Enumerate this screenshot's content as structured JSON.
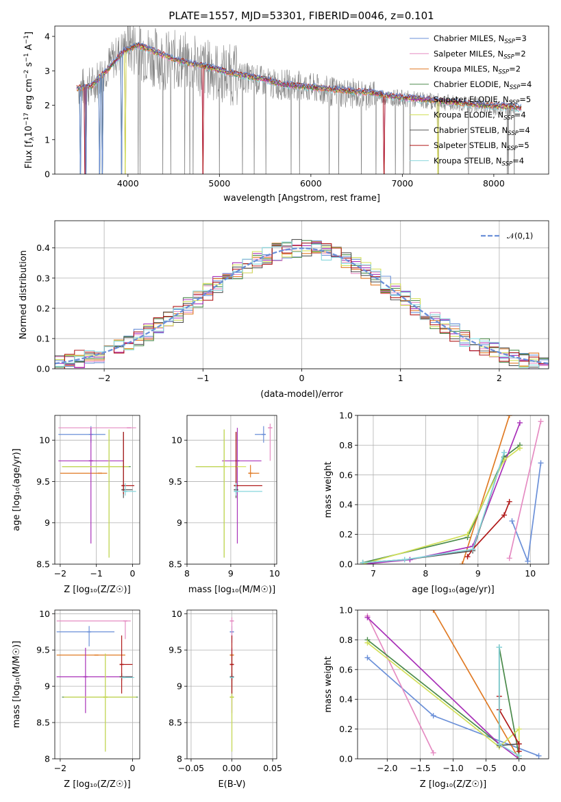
{
  "title": "PLATE=1557, MJD=53301, FIBERID=0046, z=0.101",
  "colors": [
    "#6a8fd8",
    "#e58bc2",
    "#e07a24",
    "#4a8a4a",
    "#a830b8",
    "#d2e05a",
    "#555555",
    "#b01818",
    "#86d6dc"
  ],
  "legend": [
    "Chabrier MILES, N_SSP=3",
    "Salpeter MILES, N_SSP=2",
    "Kroupa MILES, N_SSP=2",
    "Chabrier ELODIE, N_SSP=4",
    "Salpeter ELODIE, N_SSP=5",
    "Kroupa ELODIE, N_SSP=4",
    "Chabrier STELIB, N_SSP=4",
    "Salpeter STELIB, N_SSP=5",
    "Kroupa STELIB, N_SSP=4"
  ],
  "chart_data": [
    {
      "id": "spectrum",
      "type": "line",
      "xlabel": "wavelength [Angstrom, rest frame]",
      "ylabel": "Flux [f_λ 10^-17 erg cm^-2 s^-1 A^-1]",
      "xlim": [
        3200,
        8600
      ],
      "ylim": [
        0,
        4.3
      ],
      "xticks": [
        4000,
        5000,
        6000,
        7000,
        8000
      ],
      "yticks": [
        0,
        1,
        2,
        3,
        4
      ],
      "grid": false,
      "legend_position": "top-right",
      "data_series": {
        "name": "data",
        "color": "#808080",
        "x": [
          3460,
          3600,
          3800,
          4000,
          4200,
          4400,
          4600,
          4800,
          5000,
          5200,
          5400,
          5600,
          5800,
          6000,
          6200,
          6400,
          6600,
          6800,
          7000,
          7200,
          7400,
          7600,
          7800,
          8000,
          8200
        ],
        "y": [
          2.5,
          2.55,
          3.2,
          3.8,
          3.5,
          3.3,
          3.3,
          3.1,
          2.95,
          2.85,
          2.75,
          2.6,
          2.6,
          2.5,
          2.4,
          2.35,
          2.3,
          2.25,
          2.2,
          2.15,
          2.1,
          2.05,
          2.0,
          1.95,
          1.9
        ]
      },
      "model_x": [
        3440,
        3600,
        3800,
        3950,
        4100,
        4300,
        4500,
        4700,
        4900,
        5100,
        5300,
        5500,
        5700,
        5900,
        6100,
        6300,
        6500,
        6700,
        6900,
        7100,
        7300,
        7500,
        7700,
        7900,
        8100,
        8300
      ],
      "model_y": [
        2.5,
        2.55,
        3.1,
        3.55,
        3.75,
        3.55,
        3.35,
        3.2,
        3.1,
        2.95,
        2.85,
        2.75,
        2.6,
        2.55,
        2.5,
        2.45,
        2.4,
        2.35,
        2.25,
        2.2,
        2.15,
        2.1,
        2.05,
        2.0,
        1.97,
        1.92
      ]
    },
    {
      "id": "residual_hist",
      "type": "line",
      "xlabel": "(data-model)/error",
      "ylabel": "Normed distribution",
      "xlim": [
        -2.5,
        2.5
      ],
      "ylim": [
        0,
        0.49
      ],
      "xticks": [
        -2,
        -1,
        0,
        1,
        2
      ],
      "yticks": [
        0.0,
        0.1,
        0.2,
        0.3,
        0.4
      ],
      "grid": true,
      "legend": "𝒩(0,1)",
      "legend_position": "top-right",
      "bin_width": 0.1,
      "reference_mean": 0,
      "reference_sigma": 1
    },
    {
      "id": "age_vs_Z",
      "type": "scatter",
      "xlabel": "Z [log10(Z/Z☉)]",
      "ylabel": "age [log10(age/yr)]",
      "xlim": [
        -2.15,
        0.2
      ],
      "ylim": [
        8.5,
        10.3
      ],
      "xticks": [
        -2,
        -1,
        0
      ],
      "yticks": [
        8.5,
        9.0,
        9.5,
        10.0
      ],
      "grid": true,
      "points": [
        {
          "x": -1.15,
          "y": 10.07,
          "xerr": [
            0.9,
            0.4
          ],
          "yerr": [
            0.1,
            0.1
          ],
          "color": 0
        },
        {
          "x": -0.1,
          "y": 10.15,
          "xerr": [
            1.95,
            0.2
          ],
          "yerr": [
            0.0,
            0.0
          ],
          "color": 1
        },
        {
          "x": -0.9,
          "y": 9.6,
          "xerr": [
            1.1,
            0.2
          ],
          "yerr": [
            0.0,
            0.0
          ],
          "color": 2
        },
        {
          "x": -0.65,
          "y": 9.68,
          "xerr": [
            1.3,
            0.6
          ],
          "yerr": [
            1.1,
            0.45
          ],
          "color": 3
        },
        {
          "x": -1.15,
          "y": 9.75,
          "xerr": [
            0.9,
            0.9
          ],
          "yerr": [
            1.0,
            0.4
          ],
          "color": 4
        },
        {
          "x": -0.65,
          "y": 9.68,
          "xerr": [
            1.3,
            0.55
          ],
          "yerr": [
            1.1,
            0.45
          ],
          "color": 5
        },
        {
          "x": -0.25,
          "y": 9.4,
          "xerr": [
            0.05,
            0.25
          ],
          "yerr": [
            0.1,
            0.7
          ],
          "color": 6
        },
        {
          "x": -0.25,
          "y": 9.45,
          "xerr": [
            0.05,
            0.3
          ],
          "yerr": [
            0.1,
            0.65
          ],
          "color": 7
        },
        {
          "x": -0.2,
          "y": 9.38,
          "xerr": [
            0.05,
            0.3
          ],
          "yerr": [
            0.05,
            0.1
          ],
          "color": 8
        }
      ]
    },
    {
      "id": "age_vs_mass",
      "type": "scatter",
      "xlabel": "mass [log10(M/M☉)]",
      "ylabel": "",
      "xlim": [
        8.0,
        10.05
      ],
      "ylim": [
        8.5,
        10.3
      ],
      "xticks": [
        8,
        9,
        10
      ],
      "yticks": [
        8.5,
        9.0,
        9.5,
        10.0
      ],
      "grid": true,
      "points": [
        {
          "x": 9.75,
          "y": 10.07,
          "xerr": [
            0.2,
            0.05
          ],
          "yerr": [
            0.1,
            0.1
          ],
          "color": 0
        },
        {
          "x": 9.9,
          "y": 10.15,
          "xerr": [
            0.05,
            0.05
          ],
          "yerr": [
            0.4,
            0.05
          ],
          "color": 1
        },
        {
          "x": 9.45,
          "y": 9.6,
          "xerr": [
            0.05,
            0.2
          ],
          "yerr": [
            0.05,
            0.1
          ],
          "color": 2
        },
        {
          "x": 8.85,
          "y": 9.68,
          "xerr": [
            0.65,
            0.05
          ],
          "yerr": [
            1.1,
            0.45
          ],
          "color": 3
        },
        {
          "x": 9.15,
          "y": 9.75,
          "xerr": [
            0.35,
            0.55
          ],
          "yerr": [
            1.0,
            0.4
          ],
          "color": 4
        },
        {
          "x": 8.85,
          "y": 9.68,
          "xerr": [
            0.65,
            0.5
          ],
          "yerr": [
            1.1,
            0.45
          ],
          "color": 5
        },
        {
          "x": 9.12,
          "y": 9.4,
          "xerr": [
            0.05,
            0.05
          ],
          "yerr": [
            0.1,
            0.7
          ],
          "color": 6
        },
        {
          "x": 9.12,
          "y": 9.45,
          "xerr": [
            0.05,
            0.6
          ],
          "yerr": [
            0.1,
            0.65
          ],
          "color": 7
        },
        {
          "x": 9.12,
          "y": 9.38,
          "xerr": [
            0.05,
            0.6
          ],
          "yerr": [
            0.05,
            0.1
          ],
          "color": 8
        }
      ]
    },
    {
      "id": "massweight_vs_age",
      "type": "line",
      "xlabel": "age [log10(age/yr)]",
      "ylabel": "mass weight",
      "xlim": [
        6.7,
        10.35
      ],
      "ylim": [
        0,
        1.0
      ],
      "xticks": [
        7,
        8,
        9,
        10
      ],
      "yticks": [
        0.0,
        0.2,
        0.4,
        0.6,
        0.8,
        1.0
      ],
      "grid": true,
      "series": [
        {
          "color": 0,
          "x": [
            9.65,
            9.95,
            10.2
          ],
          "y": [
            0.29,
            0.02,
            0.68
          ]
        },
        {
          "color": 1,
          "x": [
            9.6,
            10.2
          ],
          "y": [
            0.04,
            0.96
          ]
        },
        {
          "color": 2,
          "x": [
            8.7,
            9.6
          ],
          "y": [
            0.0,
            1.0
          ]
        },
        {
          "color": 3,
          "x": [
            6.8,
            8.8,
            9.5,
            9.8
          ],
          "y": [
            0.01,
            0.18,
            0.72,
            0.8
          ]
        },
        {
          "color": 4,
          "x": [
            6.8,
            7.7,
            8.9,
            9.8
          ],
          "y": [
            0.0,
            0.03,
            0.12,
            0.95
          ]
        },
        {
          "color": 5,
          "x": [
            6.8,
            8.8,
            9.5,
            9.8
          ],
          "y": [
            0.0,
            0.2,
            0.7,
            0.78
          ]
        },
        {
          "color": 6,
          "x": [
            6.8,
            7.6,
            8.9,
            9.5
          ],
          "y": [
            0.01,
            0.03,
            0.09,
            0.75
          ]
        },
        {
          "color": 7,
          "x": [
            8.8,
            8.9,
            9.5,
            9.6
          ],
          "y": [
            0.05,
            0.1,
            0.33,
            0.42
          ]
        },
        {
          "color": 8,
          "x": [
            6.8,
            7.6,
            8.9,
            9.5
          ],
          "y": [
            0.01,
            0.03,
            0.1,
            0.75
          ]
        }
      ]
    },
    {
      "id": "mass_vs_Z",
      "type": "scatter",
      "xlabel": "Z [log10(Z/Z☉)]",
      "ylabel": "mass [log10(M/M☉)]",
      "xlim": [
        -2.15,
        0.2
      ],
      "ylim": [
        8.0,
        10.05
      ],
      "xticks": [
        -2,
        0
      ],
      "yticks": [
        8.0,
        8.5,
        9.0,
        9.5,
        10.0
      ],
      "grid": true,
      "points": [
        {
          "x": -1.2,
          "y": 9.75,
          "xerr": [
            0.9,
            0.7
          ],
          "yerr": [
            0.2,
            0.08
          ],
          "color": 0
        },
        {
          "x": -0.2,
          "y": 9.9,
          "xerr": [
            1.9,
            0.15
          ],
          "yerr": [
            0.25,
            0.0
          ],
          "color": 1
        },
        {
          "x": -1.0,
          "y": 9.43,
          "xerr": [
            1.1,
            0.8
          ],
          "yerr": [
            0.0,
            0.0
          ],
          "color": 2
        },
        {
          "x": -0.75,
          "y": 8.85,
          "xerr": [
            1.2,
            0.9
          ],
          "yerr": [
            0.75,
            0.6
          ],
          "color": 3
        },
        {
          "x": -1.3,
          "y": 9.13,
          "xerr": [
            0.8,
            1.3
          ],
          "yerr": [
            0.5,
            0.4
          ],
          "color": 4
        },
        {
          "x": -0.75,
          "y": 8.85,
          "xerr": [
            1.15,
            0.85
          ],
          "yerr": [
            0.75,
            0.6
          ],
          "color": 5
        },
        {
          "x": -0.3,
          "y": 9.13,
          "xerr": [
            0.05,
            0.3
          ],
          "yerr": [
            0.05,
            0.05
          ],
          "color": 6
        },
        {
          "x": -0.3,
          "y": 9.3,
          "xerr": [
            0.0,
            0.3
          ],
          "yerr": [
            0.4,
            0.4
          ],
          "color": 7
        },
        {
          "x": -0.25,
          "y": 9.12,
          "xerr": [
            0.05,
            0.3
          ],
          "yerr": [
            0.0,
            0.0
          ],
          "color": 8
        }
      ]
    },
    {
      "id": "mass_vs_ebv",
      "type": "scatter",
      "xlabel": "E(B-V)",
      "ylabel": "",
      "xlim": [
        -0.055,
        0.055
      ],
      "ylim": [
        8.0,
        10.05
      ],
      "xticks": [
        -0.05,
        0.0,
        0.05
      ],
      "xticklabels": [
        "−0.05",
        "0.00",
        "0.05"
      ],
      "yticks": [
        8.0,
        8.5,
        9.0,
        9.5,
        10.0
      ],
      "grid": true,
      "points": [
        {
          "x": 0.0,
          "y": 9.75,
          "xerr": [
            0,
            0
          ],
          "yerr": [
            0.15,
            0.08
          ],
          "color": 0
        },
        {
          "x": 0.0,
          "y": 9.9,
          "xerr": [
            0,
            0
          ],
          "yerr": [
            0.25,
            0.05
          ],
          "color": 1
        },
        {
          "x": 0.0,
          "y": 9.43,
          "xerr": [
            0,
            0
          ],
          "yerr": [
            0.0,
            0.0
          ],
          "color": 2
        },
        {
          "x": 0.0,
          "y": 8.85,
          "xerr": [
            0,
            0
          ],
          "yerr": [
            0.75,
            0.6
          ],
          "color": 3
        },
        {
          "x": 0.0,
          "y": 9.13,
          "xerr": [
            0,
            0
          ],
          "yerr": [
            0.5,
            0.4
          ],
          "color": 4
        },
        {
          "x": 0.0,
          "y": 8.85,
          "xerr": [
            0,
            0
          ],
          "yerr": [
            0.75,
            0.6
          ],
          "color": 5
        },
        {
          "x": 0.0,
          "y": 9.13,
          "xerr": [
            0,
            0
          ],
          "yerr": [
            0.05,
            0.05
          ],
          "color": 6
        },
        {
          "x": 0.0,
          "y": 9.3,
          "xerr": [
            0,
            0
          ],
          "yerr": [
            0.4,
            0.4
          ],
          "color": 7
        },
        {
          "x": 0.0,
          "y": 9.12,
          "xerr": [
            0,
            0
          ],
          "yerr": [
            0.0,
            0.0
          ],
          "color": 8
        }
      ]
    },
    {
      "id": "massweight_vs_Z",
      "type": "line",
      "xlabel": "Z [log10(Z/Z☉)]",
      "ylabel": "mass weight",
      "xlim": [
        -2.45,
        0.45
      ],
      "ylim": [
        0,
        1.0
      ],
      "xticks": [
        -2.0,
        -1.5,
        -1.0,
        -0.5,
        0.0
      ],
      "xticklabels": [
        "−2.0",
        "−1.5",
        "−1.0",
        "−0.5",
        "0.0"
      ],
      "yticks": [
        0.0,
        0.2,
        0.4,
        0.6,
        0.8,
        1.0
      ],
      "grid": true,
      "series": [
        {
          "color": 0,
          "x": [
            -2.3,
            -1.3,
            0.3
          ],
          "y": [
            0.68,
            0.29,
            0.02
          ]
        },
        {
          "color": 1,
          "x": [
            -2.3,
            -1.3
          ],
          "y": [
            0.96,
            0.04
          ]
        },
        {
          "color": 2,
          "x": [
            -1.3,
            0.0
          ],
          "y": [
            1.0,
            0.0
          ]
        },
        {
          "color": 3,
          "x": [
            -2.3,
            -0.3,
            -0.3,
            0.0
          ],
          "y": [
            0.8,
            0.1,
            0.75,
            0.02
          ]
        },
        {
          "color": 4,
          "x": [
            -2.3,
            -0.3,
            0.0
          ],
          "y": [
            0.95,
            0.1,
            0.0
          ]
        },
        {
          "color": 5,
          "x": [
            -2.3,
            -0.3,
            0.0,
            0.0
          ],
          "y": [
            0.78,
            0.08,
            0.2,
            0.0
          ]
        },
        {
          "color": 6,
          "x": [
            -0.3,
            -0.3,
            0.0,
            0.0
          ],
          "y": [
            0.75,
            0.09,
            0.1,
            0.0
          ]
        },
        {
          "color": 7,
          "x": [
            -0.3,
            -0.3,
            0.0,
            0.0
          ],
          "y": [
            0.42,
            0.33,
            0.1,
            0.05
          ]
        },
        {
          "color": 8,
          "x": [
            -0.3,
            -0.3,
            0.0
          ],
          "y": [
            0.75,
            0.1,
            0.02
          ]
        }
      ]
    }
  ]
}
